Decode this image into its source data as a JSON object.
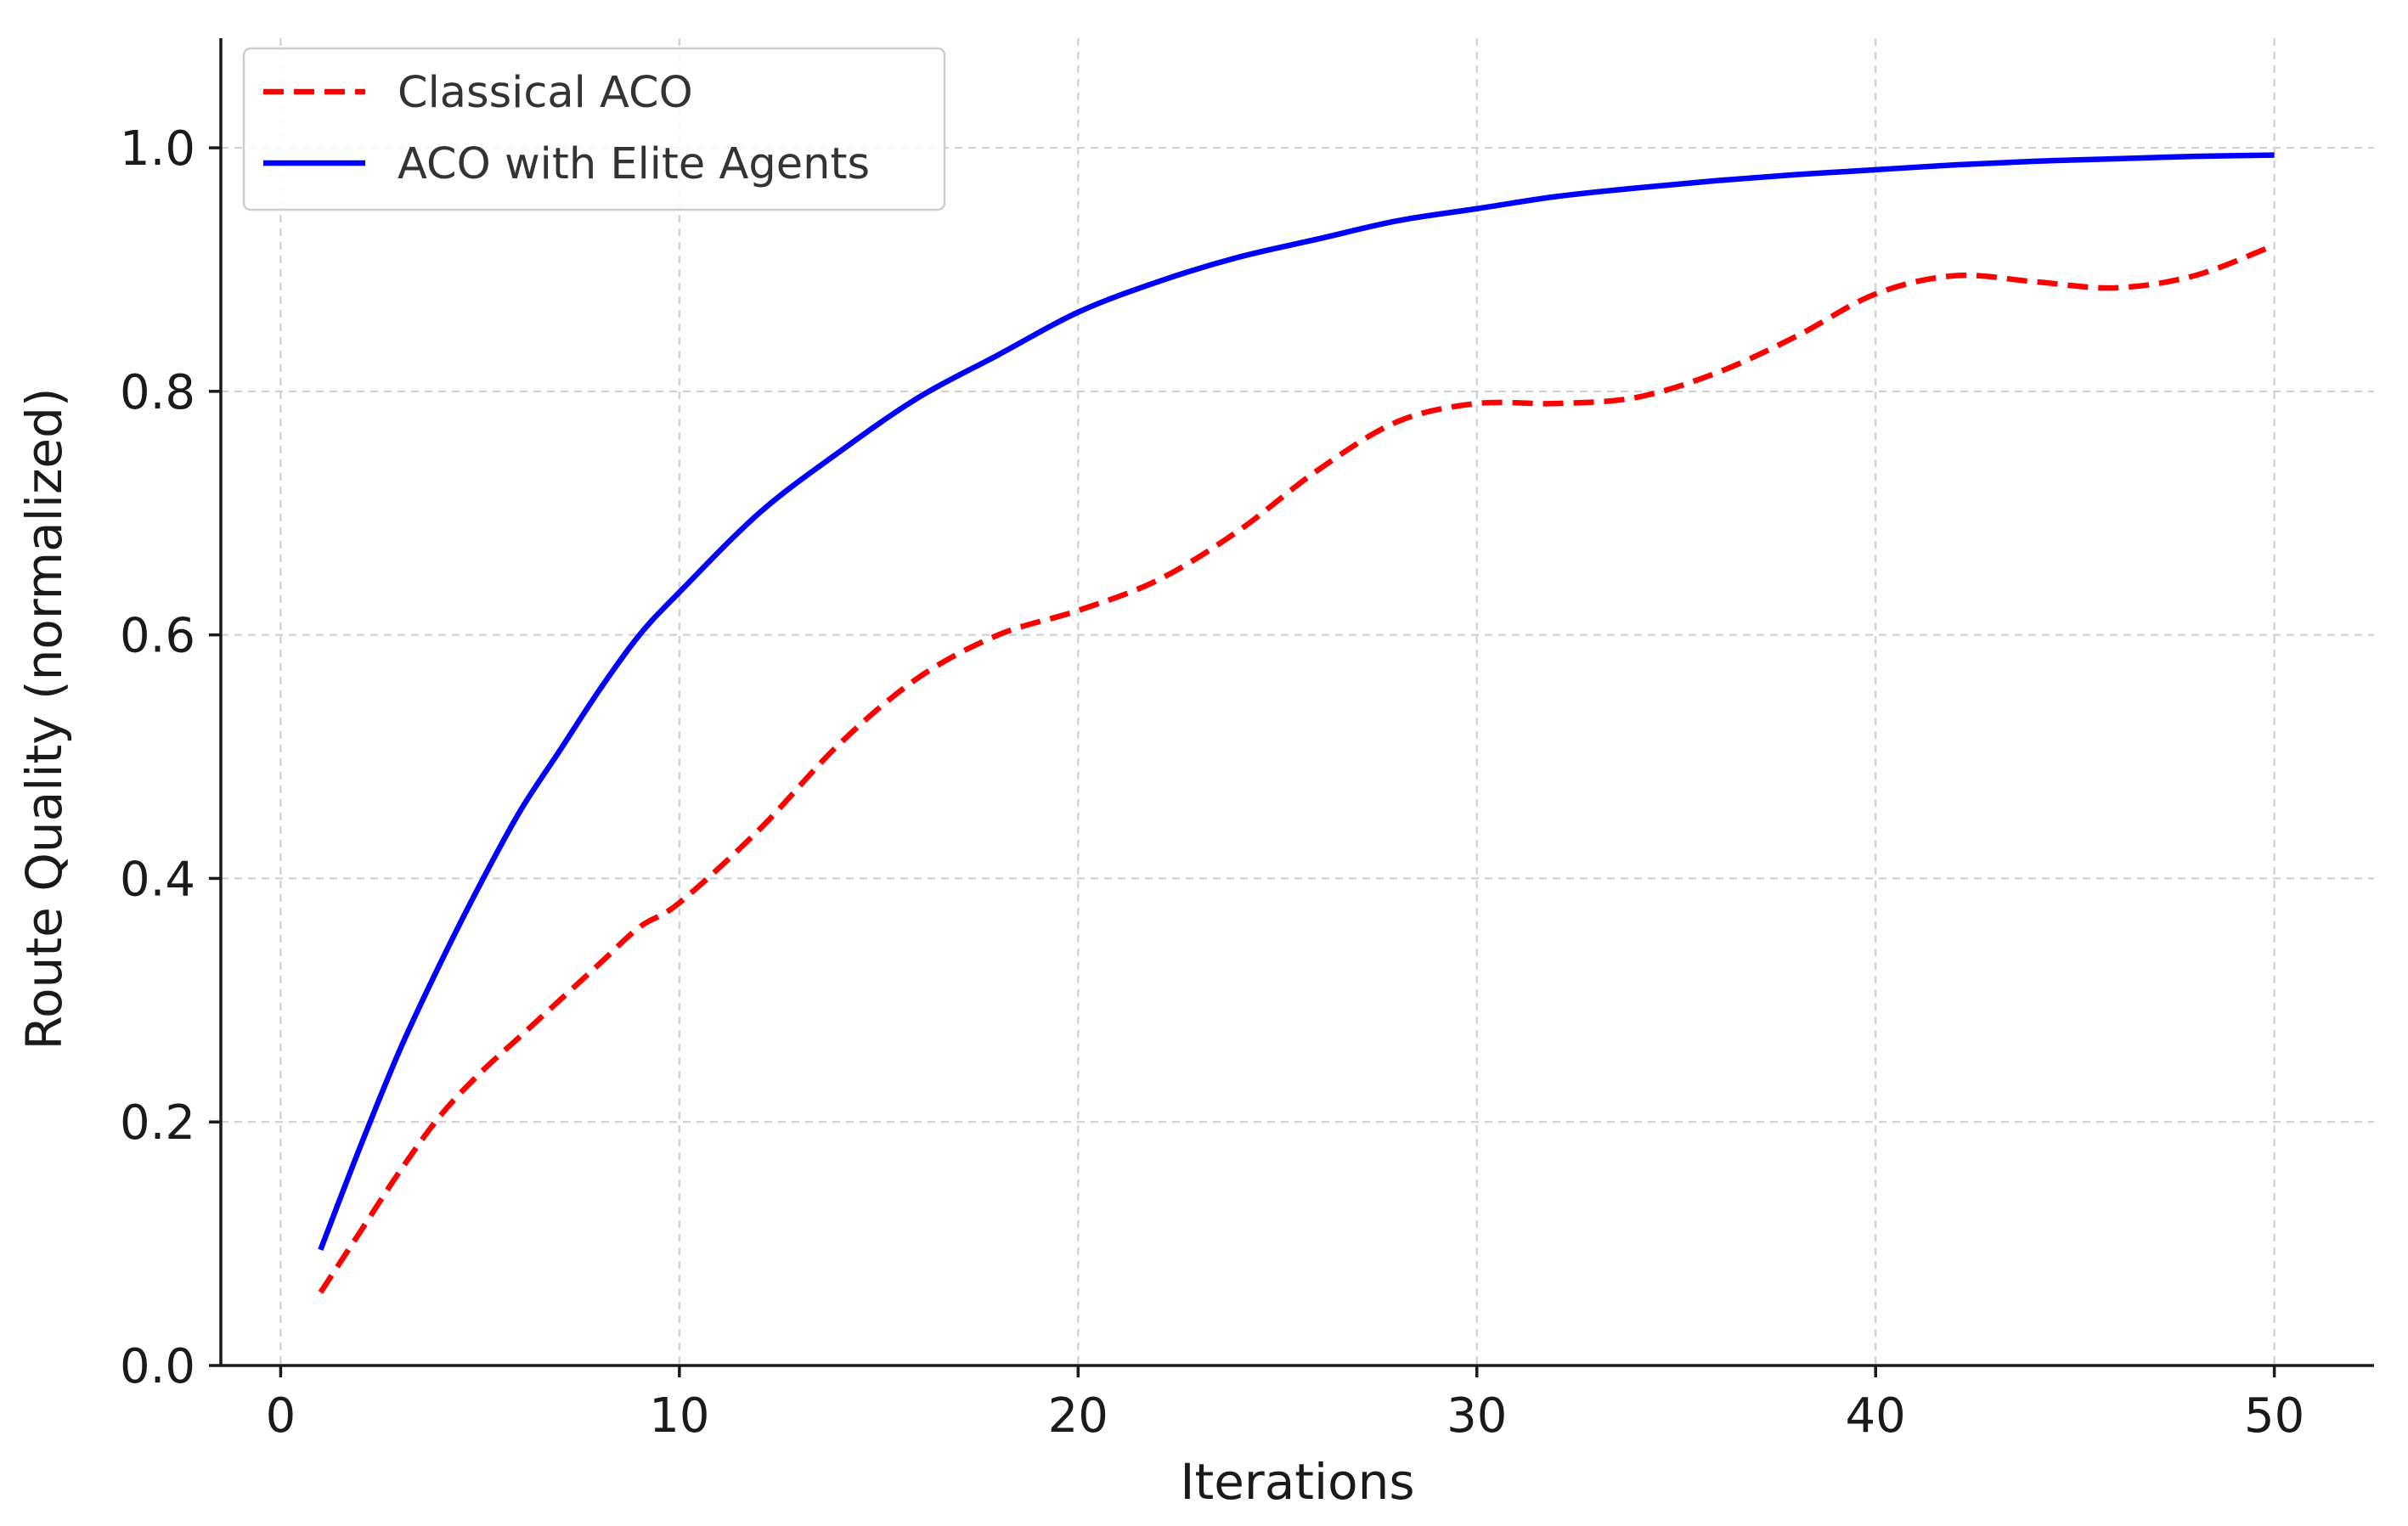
{
  "chart_data": {
    "type": "line",
    "title": "",
    "xlabel": "Iterations",
    "ylabel": "Route Quality (normalized)",
    "xlim": [
      -1.5,
      52.5
    ],
    "ylim": [
      0.0,
      1.09
    ],
    "xticks": [
      0,
      10,
      20,
      30,
      40,
      50
    ],
    "yticks": [
      0.0,
      0.2,
      0.4,
      0.6,
      0.8,
      1.0
    ],
    "xtick_labels": [
      "0",
      "10",
      "20",
      "30",
      "40",
      "50"
    ],
    "ytick_labels": [
      "0.0",
      "0.2",
      "0.4",
      "0.6",
      "0.8",
      "1.0"
    ],
    "grid": true,
    "legend_position": "top-left",
    "x": [
      1,
      2,
      3,
      4,
      5,
      6,
      7,
      8,
      9,
      10,
      12,
      14,
      16,
      18,
      20,
      22,
      24,
      26,
      28,
      30,
      32,
      34,
      36,
      38,
      40,
      42,
      44,
      46,
      48,
      50
    ],
    "series": [
      {
        "name": "Classical ACO",
        "color": "#ff0000",
        "style": "dashed",
        "values": [
          0.06,
          0.11,
          0.16,
          0.205,
          0.24,
          0.27,
          0.3,
          0.33,
          0.36,
          0.38,
          0.44,
          0.51,
          0.565,
          0.6,
          0.62,
          0.645,
          0.685,
          0.735,
          0.775,
          0.79,
          0.79,
          0.795,
          0.815,
          0.845,
          0.88,
          0.895,
          0.89,
          0.885,
          0.895,
          0.92
        ]
      },
      {
        "name": "ACO with Elite Agents",
        "color": "#0000ff",
        "style": "solid",
        "values": [
          0.095,
          0.18,
          0.26,
          0.33,
          0.395,
          0.455,
          0.505,
          0.555,
          0.6,
          0.635,
          0.7,
          0.75,
          0.795,
          0.83,
          0.865,
          0.89,
          0.91,
          0.925,
          0.94,
          0.95,
          0.96,
          0.967,
          0.973,
          0.978,
          0.982,
          0.986,
          0.989,
          0.991,
          0.993,
          0.994
        ]
      }
    ]
  }
}
